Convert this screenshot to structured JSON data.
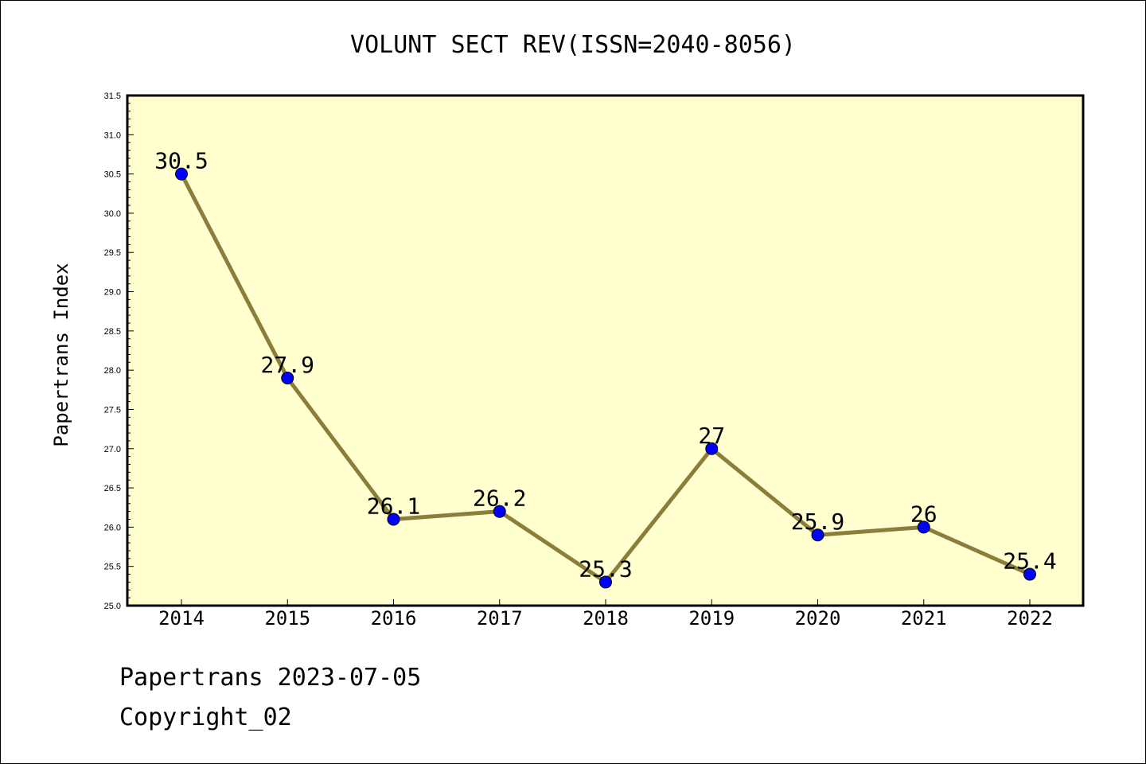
{
  "chart_data": {
    "type": "line",
    "title": "VOLUNT SECT REV(ISSN=2040-8056)",
    "xlabel": "",
    "ylabel": "Papertrans Index",
    "categories": [
      "2014",
      "2015",
      "2016",
      "2017",
      "2018",
      "2019",
      "2020",
      "2021",
      "2022"
    ],
    "series": [
      {
        "values": [
          30.5,
          27.9,
          26.1,
          26.2,
          25.3,
          27,
          25.9,
          26,
          25.4
        ],
        "point_labels": [
          "30.5",
          "27.9",
          "26.1",
          "26.2",
          "25.3",
          "27",
          "25.9",
          "26",
          "25.4"
        ]
      }
    ],
    "ylim": [
      25.0,
      31.5
    ],
    "yticks": [
      "25.0",
      "25.5",
      "26.0",
      "26.5",
      "27.0",
      "27.5",
      "28.0",
      "28.5",
      "29.0",
      "29.5",
      "30.0",
      "30.5",
      "31.0",
      "31.5"
    ],
    "grid": false,
    "colors": {
      "plot_background": "#ffffd0",
      "line": "#8b7d3a",
      "marker": "#0000ff"
    }
  },
  "footer": {
    "date_line": "Papertrans 2023-07-05",
    "copyright_line": "Copyright_02"
  }
}
